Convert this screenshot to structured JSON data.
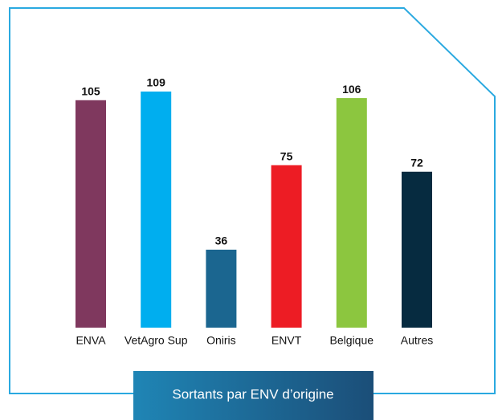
{
  "chart_data": {
    "type": "bar",
    "title": "Sortants par ENV d’origine",
    "categories": [
      "ENVA",
      "VetAgro Sup",
      "Oniris",
      "ENVT",
      "Belgique",
      "Autres"
    ],
    "values": [
      105,
      109,
      36,
      75,
      106,
      72
    ],
    "colors": [
      "#7f385e",
      "#00aeef",
      "#1b6690",
      "#ed1c24",
      "#8cc63f",
      "#062b40"
    ]
  }
}
